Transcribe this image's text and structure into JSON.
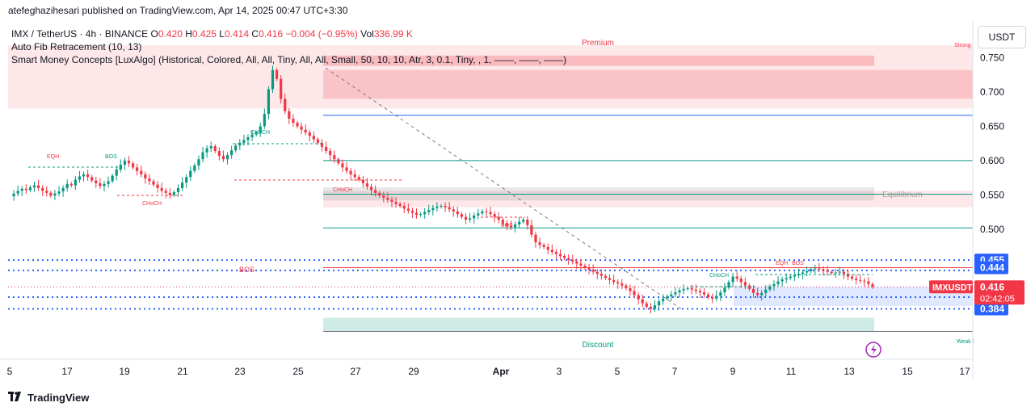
{
  "header": {
    "publisher": "atefeghazihesari published on TradingView.com, Apr 14, 2025 00:47 UTC+3:30"
  },
  "legend": {
    "symbol": "IMX / TetherUS · 4h · BINANCE",
    "open_label": "O",
    "open": "0.420",
    "high_label": "H",
    "high": "0.425",
    "low_label": "L",
    "low": "0.414",
    "close_label": "C",
    "close": "0.416",
    "change": "−0.004 (−0.95%)",
    "vol_label": "Vol",
    "vol": "336.99 K",
    "indicator1": "Auto Fib Retracement (10, 13)",
    "indicator2": "Smart Money Concepts [LuxAlgo] (Historical, Colored, All, All, Tiny, All, All, Small, 50, 10, 10, Atr, 3, 0.1, Tiny, , 1, ——, ——, ——)"
  },
  "currency_button": "USDT",
  "footer": {
    "brand": "TradingView"
  },
  "colors": {
    "up": "#089981",
    "down": "#f23645",
    "blue": "#2962ff"
  },
  "chart_data": {
    "type": "candlestick",
    "symbol": "IMXUSDT",
    "price_ticks": [
      "0.750",
      "0.700",
      "0.650",
      "0.600",
      "0.550",
      "0.500"
    ],
    "x_ticks": [
      "5",
      "17",
      "19",
      "21",
      "23",
      "25",
      "27",
      "29",
      "Apr",
      "3",
      "5",
      "7",
      "9",
      "11",
      "13",
      "15",
      "17"
    ],
    "last_price": {
      "label": "IMXUSDT",
      "value": "0.416",
      "countdown": "02:42:05"
    },
    "level_labels": [
      "0.455",
      "0.444",
      "0.401",
      "0.384"
    ],
    "zones": [
      {
        "label": "Premium",
        "from": 0.676,
        "to": 0.768
      },
      {
        "label": "Equilibrium",
        "from": 0.532,
        "to": 0.556
      },
      {
        "label": "Discount",
        "from": 0.351,
        "to": 0.371
      }
    ],
    "side_labels": {
      "strong": "Strong",
      "weak": "Weak l"
    },
    "annotations": [
      "EQH",
      "BOS",
      "CHoCH",
      "CHoCH",
      "CHoCH",
      "BOS",
      "BOS",
      "CHoCH",
      "EQH",
      "BOS"
    ],
    "series": [
      {
        "name": "IMXUSDT",
        "values": [
          0.548,
          0.552,
          0.556,
          0.559,
          0.557,
          0.561,
          0.564,
          0.56,
          0.556,
          0.553,
          0.549,
          0.552,
          0.555,
          0.56,
          0.566,
          0.564,
          0.572,
          0.577,
          0.58,
          0.576,
          0.571,
          0.567,
          0.563,
          0.566,
          0.57,
          0.578,
          0.587,
          0.594,
          0.6,
          0.596,
          0.59,
          0.585,
          0.58,
          0.574,
          0.57,
          0.565,
          0.56,
          0.556,
          0.553,
          0.55,
          0.554,
          0.56,
          0.568,
          0.576,
          0.585,
          0.593,
          0.602,
          0.612,
          0.618,
          0.621,
          0.614,
          0.607,
          0.602,
          0.608,
          0.615,
          0.622,
          0.626,
          0.63,
          0.634,
          0.638,
          0.641,
          0.65,
          0.668,
          0.704,
          0.732,
          0.719,
          0.69,
          0.672,
          0.661,
          0.655,
          0.65,
          0.645,
          0.641,
          0.636,
          0.631,
          0.626,
          0.62,
          0.614,
          0.608,
          0.602,
          0.596,
          0.59,
          0.585,
          0.58,
          0.576,
          0.572,
          0.567,
          0.562,
          0.557,
          0.553,
          0.549,
          0.546,
          0.543,
          0.54,
          0.537,
          0.534,
          0.53,
          0.527,
          0.524,
          0.521,
          0.522,
          0.525,
          0.528,
          0.531,
          0.533,
          0.534,
          0.532,
          0.529,
          0.526,
          0.522,
          0.518,
          0.514,
          0.516,
          0.52,
          0.523,
          0.526,
          0.525,
          0.522,
          0.518,
          0.514,
          0.508,
          0.505,
          0.503,
          0.507,
          0.511,
          0.514,
          0.506,
          0.492,
          0.481,
          0.477,
          0.474,
          0.47,
          0.467,
          0.464,
          0.461,
          0.458,
          0.455,
          0.453,
          0.45,
          0.447,
          0.444,
          0.441,
          0.438,
          0.435,
          0.432,
          0.429,
          0.426,
          0.423,
          0.421,
          0.418,
          0.414,
          0.41,
          0.404,
          0.398,
          0.392,
          0.387,
          0.384,
          0.389,
          0.395,
          0.399,
          0.402,
          0.405,
          0.408,
          0.411,
          0.413,
          0.414,
          0.412,
          0.41,
          0.408,
          0.405,
          0.401,
          0.399,
          0.403,
          0.408,
          0.415,
          0.423,
          0.431,
          0.428,
          0.423,
          0.418,
          0.413,
          0.407,
          0.404,
          0.407,
          0.412,
          0.417,
          0.42,
          0.424,
          0.427,
          0.429,
          0.431,
          0.433,
          0.435,
          0.437,
          0.439,
          0.442,
          0.443,
          0.442,
          0.44,
          0.438,
          0.436,
          0.437,
          0.438,
          0.435,
          0.431,
          0.428,
          0.426,
          0.425,
          0.424,
          0.42,
          0.416
        ]
      }
    ]
  }
}
